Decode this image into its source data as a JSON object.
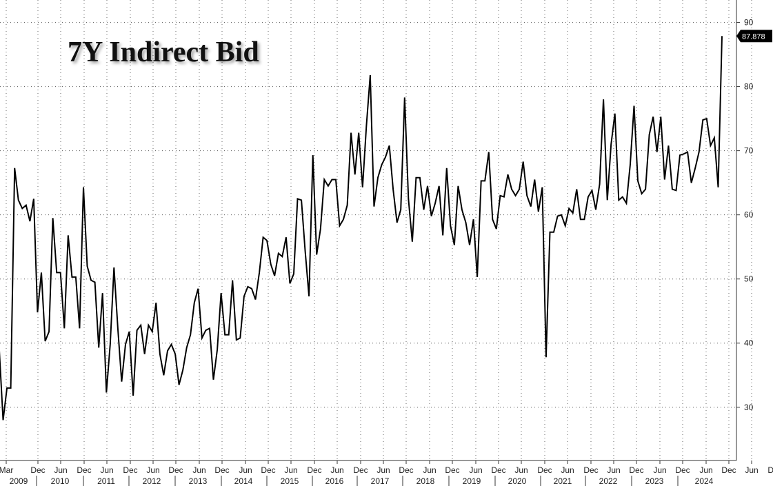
{
  "chart_data": {
    "type": "line",
    "title": "7Y Indirect Bid",
    "xlabel": "",
    "ylabel": "",
    "ylim": [
      21.7,
      93.5
    ],
    "yticks": [
      30,
      40,
      50,
      60,
      70,
      80,
      90
    ],
    "grid": true,
    "y_axis_side": "right",
    "last_value_label": "87.878",
    "x_month_labels": [
      "Mar",
      "Dec",
      "Jun",
      "Dec",
      "Jun",
      "Dec",
      "Jun",
      "Dec",
      "Jun",
      "Dec",
      "Jun",
      "Dec",
      "Jun",
      "Dec",
      "Jun",
      "Dec",
      "Jun",
      "Dec",
      "Jun",
      "Dec",
      "Jun",
      "Dec",
      "Jun",
      "Dec",
      "Jun",
      "Dec",
      "Jun",
      "Dec",
      "Jun",
      "Dec",
      "Jun",
      "Dec",
      "Jun",
      "Dec"
    ],
    "x_year_labels": [
      "2009",
      "2010",
      "2011",
      "2012",
      "2013",
      "2014",
      "2015",
      "2016",
      "2017",
      "2018",
      "2019",
      "2020",
      "2021",
      "2022",
      "2023",
      "2024"
    ],
    "series": [
      {
        "values": [
          38.8,
          28.0,
          33.0,
          33.0,
          67.3,
          62.3,
          61.0,
          61.5,
          59.0,
          62.5,
          44.8,
          51.0,
          40.3,
          41.8,
          59.5,
          51.0,
          51.0,
          42.3,
          56.8,
          50.3,
          50.3,
          42.3,
          64.3,
          52.0,
          49.8,
          49.5,
          39.3,
          47.8,
          32.3,
          39.8,
          51.8,
          42.3,
          34.0,
          39.8,
          41.8,
          31.8,
          42.0,
          42.8,
          38.3,
          42.8,
          41.8,
          46.3,
          38.3,
          35.0,
          38.8,
          39.8,
          38.3,
          33.5,
          35.8,
          39.3,
          41.3,
          46.3,
          48.5,
          40.8,
          42.0,
          42.3,
          34.3,
          39.0,
          47.8,
          41.3,
          41.3,
          49.8,
          40.5,
          40.8,
          47.3,
          48.8,
          48.5,
          46.8,
          51.0,
          56.5,
          56.0,
          52.3,
          50.5,
          54.0,
          53.5,
          56.5,
          49.3,
          50.8,
          62.5,
          62.3,
          54.3,
          47.3,
          69.3,
          53.8,
          57.8,
          65.5,
          64.5,
          65.5,
          65.5,
          58.3,
          59.3,
          61.5,
          72.8,
          66.3,
          72.8,
          64.3,
          73.8,
          81.8,
          61.3,
          65.8,
          67.8,
          69.0,
          70.8,
          64.0,
          58.8,
          60.8,
          78.3,
          62.5,
          55.8,
          65.8,
          65.8,
          60.8,
          64.5,
          59.8,
          61.8,
          64.5,
          56.8,
          67.3,
          58.3,
          55.3,
          64.5,
          60.8,
          58.8,
          55.3,
          59.3,
          50.3,
          65.3,
          65.3,
          69.8,
          59.3,
          57.8,
          63.0,
          62.8,
          66.3,
          64.0,
          63.0,
          64.0,
          68.3,
          63.0,
          61.3,
          65.5,
          60.5,
          64.3,
          37.8,
          57.3,
          57.3,
          59.8,
          60.0,
          58.3,
          61.0,
          60.3,
          64.0,
          59.3,
          59.3,
          62.8,
          63.8,
          60.8,
          64.8,
          78.0,
          62.3,
          71.0,
          75.8,
          62.3,
          62.8,
          61.8,
          67.8,
          77.0,
          65.3,
          63.3,
          64.0,
          72.5,
          75.3,
          69.8,
          75.3,
          65.5,
          70.8,
          64.0,
          63.8,
          69.3,
          69.5,
          69.8,
          65.0,
          67.3,
          69.8,
          74.8,
          75.0,
          70.8,
          72.0,
          64.3,
          87.878
        ]
      }
    ]
  }
}
